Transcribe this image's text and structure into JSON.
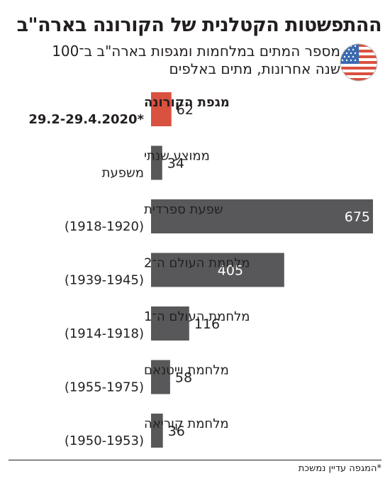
{
  "header": {
    "title": "ההתפשטות הקטלנית של הקורונה בארה\"ב",
    "subtitle": "מספר המתים במלחמות ומגפות בארה\"ב ב־100 שנה אחרונות, מתים באלפים",
    "icon": "us-flag-icon"
  },
  "colors": {
    "highlight": "#d9513f",
    "bar": "#58585a",
    "text": "#231f20",
    "label_on_bar": "#ffffff"
  },
  "chart_data": {
    "type": "bar",
    "orientation": "horizontal",
    "title": "ההתפשטות הקטלנית של הקורונה בארה\"ב",
    "subtitle": "מספר המתים במלחמות ומגפות בארה\"ב ב־100 שנה אחרונות, מתים באלפים",
    "xlim": [
      0,
      675
    ],
    "grid": false,
    "categories": [
      {
        "label": "מגפת הקורונה",
        "period": "29.2-29.4.2020*",
        "value": 62,
        "highlight": true
      },
      {
        "label": "ממוצע שנתי",
        "period": "משפעת",
        "value": 34,
        "highlight": false
      },
      {
        "label": "שפעת ספרדית",
        "period": "(1918-1920)",
        "value": 675,
        "highlight": false
      },
      {
        "label": "מלחמת העולם ה־2",
        "period": "(1939-1945)",
        "value": 405,
        "highlight": false
      },
      {
        "label": "מלחמת העולם ה־1",
        "period": "(1914-1918)",
        "value": 116,
        "highlight": false
      },
      {
        "label": "מלחמת וייטנאם",
        "period": "(1955-1975)",
        "value": 58,
        "highlight": false
      },
      {
        "label": "מלחמת קוריאה",
        "period": "(1950-1953)",
        "value": 36,
        "highlight": false
      }
    ]
  },
  "footnote": "*המגפה עדיין נמשכת"
}
